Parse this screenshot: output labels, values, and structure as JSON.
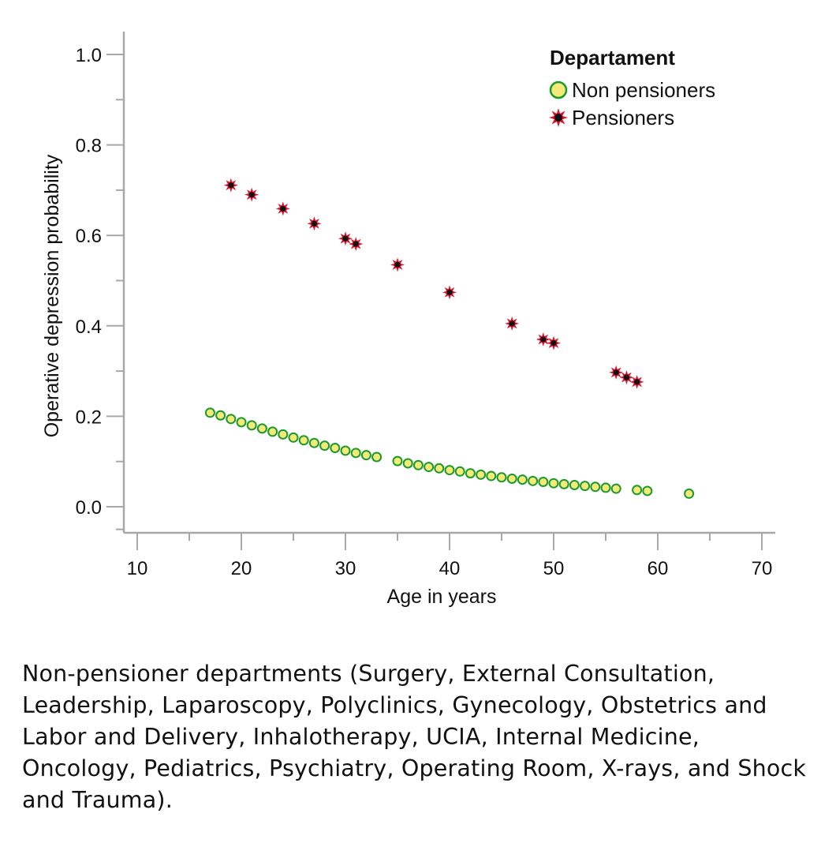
{
  "chart_data": {
    "type": "scatter",
    "title": "",
    "xlabel": "Age in years",
    "ylabel": "Operative depression probability",
    "xlim": [
      10,
      70
    ],
    "ylim": [
      0.0,
      1.0
    ],
    "xticks": [
      10,
      20,
      30,
      40,
      50,
      60,
      70
    ],
    "xtick_labels": [
      "10",
      "20",
      "30",
      "40",
      "50",
      "60",
      "70"
    ],
    "yticks": [
      0.0,
      0.2,
      0.4,
      0.6,
      0.8,
      1.0
    ],
    "ytick_labels": [
      "0.0",
      "0.2",
      "0.4",
      "0.6",
      "0.8",
      "1.0"
    ],
    "grid": false,
    "legend": {
      "title": "Departament",
      "placement": "top-right"
    },
    "series": [
      {
        "name": "Non pensioners",
        "marker": "circle",
        "fill": "#f5e97a",
        "stroke": "#1a9a2a",
        "x": [
          17,
          18,
          19,
          20,
          21,
          22,
          23,
          24,
          25,
          26,
          27,
          28,
          29,
          30,
          31,
          32,
          33,
          35,
          36,
          37,
          38,
          39,
          40,
          41,
          42,
          43,
          44,
          45,
          46,
          47,
          48,
          49,
          50,
          51,
          52,
          53,
          54,
          55,
          56,
          58,
          59,
          63
        ],
        "y": [
          0.208,
          0.202,
          0.194,
          0.187,
          0.18,
          0.173,
          0.166,
          0.16,
          0.153,
          0.147,
          0.141,
          0.135,
          0.13,
          0.124,
          0.119,
          0.114,
          0.11,
          0.101,
          0.096,
          0.092,
          0.088,
          0.085,
          0.081,
          0.078,
          0.074,
          0.071,
          0.068,
          0.065,
          0.062,
          0.06,
          0.057,
          0.055,
          0.052,
          0.05,
          0.048,
          0.046,
          0.044,
          0.042,
          0.04,
          0.037,
          0.035,
          0.029
        ]
      },
      {
        "name": "Pensioners",
        "marker": "star",
        "fill": "#111111",
        "stroke": "#e0102a",
        "x": [
          19,
          21,
          24,
          27,
          30,
          31,
          35,
          40,
          46,
          49,
          50,
          56,
          57,
          58
        ],
        "y": [
          0.711,
          0.69,
          0.659,
          0.626,
          0.593,
          0.581,
          0.535,
          0.474,
          0.405,
          0.37,
          0.362,
          0.297,
          0.286,
          0.276
        ]
      }
    ]
  },
  "caption": "Non-pensioner departments (Surgery, External Consultation, Leadership, Laparoscopy, Polyclinics, Gynecology, Obstetrics and Labor and Delivery, Inhalotherapy, UCIA, Internal Medicine, Oncology, Pediatrics, Psychiatry, Operating Room, X-rays, and Shock and Trauma)."
}
